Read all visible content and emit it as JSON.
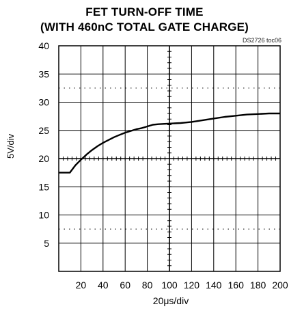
{
  "title_line1": "FET TURN-OFF TIME",
  "title_line2": "(WITH 460nC TOTAL GATE CHARGE)",
  "figure_code": "DS2726 toc06",
  "chart_data": {
    "type": "line",
    "title": "FET TURN-OFF TIME (WITH 460nC TOTAL GATE CHARGE)",
    "xlabel": "20μs/div",
    "ylabel": "5V/div",
    "xlim": [
      0,
      200
    ],
    "ylim": [
      0,
      40
    ],
    "x_ticks": [
      20,
      40,
      60,
      80,
      100,
      120,
      140,
      160,
      180,
      200
    ],
    "y_ticks": [
      5,
      10,
      15,
      20,
      25,
      30,
      35,
      40
    ],
    "grid": true,
    "series": [
      {
        "x": [
          0,
          10,
          15,
          20,
          25,
          30,
          35,
          40,
          45,
          50,
          55,
          60,
          65,
          70,
          75,
          80,
          85,
          90,
          100,
          110,
          120,
          130,
          140,
          150,
          160,
          170,
          180,
          190,
          200
        ],
        "values": [
          17.5,
          17.5,
          18.8,
          19.8,
          20.7,
          21.5,
          22.2,
          22.8,
          23.3,
          23.8,
          24.2,
          24.6,
          24.9,
          25.2,
          25.4,
          25.7,
          26.0,
          26.1,
          26.2,
          26.3,
          26.5,
          26.8,
          27.1,
          27.4,
          27.6,
          27.8,
          27.9,
          28.0,
          28.0
        ]
      }
    ]
  },
  "colors": {
    "trace": "#000000",
    "grid": "#000000"
  }
}
